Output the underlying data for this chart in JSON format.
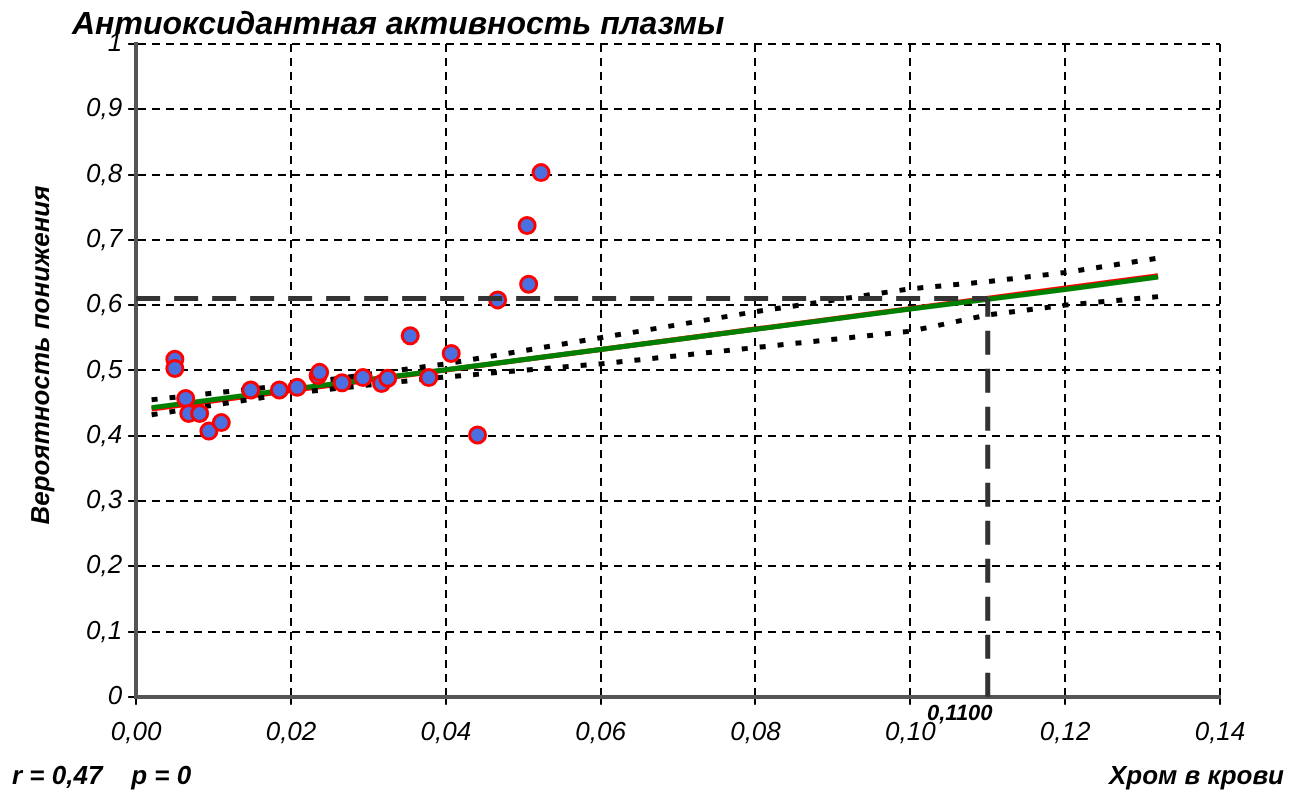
{
  "chart_data": {
    "type": "scatter",
    "title": "Антиоксидантная активность плазмы",
    "xlabel": "Хром в крови",
    "ylabel": "Вероятность понижения",
    "xlim": [
      0,
      0.14
    ],
    "xticks": [
      {
        "value": 0,
        "label": "0,00"
      },
      {
        "value": 0.02,
        "label": "0,02"
      },
      {
        "value": 0.04,
        "label": "0,04"
      },
      {
        "value": 0.06,
        "label": "0,06"
      },
      {
        "value": 0.08,
        "label": "0,08"
      },
      {
        "value": 0.1,
        "label": "0,10"
      },
      {
        "value": 0.12,
        "label": "0,12"
      },
      {
        "value": 0.14,
        "label": "0,14"
      }
    ],
    "ylim": [
      0,
      1
    ],
    "yticks": [
      0,
      {
        "value": 0.1,
        "label": "0,1"
      },
      {
        "value": 0.2,
        "label": "0,2"
      },
      {
        "value": 0.3,
        "label": "0,3"
      },
      {
        "value": 0.4,
        "label": "0,4"
      },
      {
        "value": 0.5,
        "label": "0,5"
      },
      {
        "value": 0.6,
        "label": "0,6"
      },
      {
        "value": 0.7,
        "label": "0,7"
      },
      {
        "value": 0.8,
        "label": "0,8"
      },
      {
        "value": 0.9,
        "label": "0,9"
      },
      1
    ],
    "grid": true,
    "legend": false,
    "series": [
      {
        "type": "line",
        "color": "#ff0000",
        "x": [
          0.002,
          0.132
        ],
        "values": [
          0.441,
          0.645
        ]
      },
      {
        "type": "line",
        "color": "#008000",
        "x": [
          0.002,
          0.02,
          0.04,
          0.06,
          0.08,
          0.1,
          0.11,
          0.12,
          0.132
        ],
        "values": [
          0.443,
          0.471,
          0.501,
          0.532,
          0.563,
          0.594,
          0.609,
          0.624,
          0.643
        ]
      },
      {
        "type": "line",
        "color": "#000000",
        "line_style": "dotted",
        "x": [
          0.002,
          0.02,
          0.04,
          0.06,
          0.08,
          0.1,
          0.11,
          0.12,
          0.132
        ],
        "values": [
          0.432,
          0.465,
          0.49,
          0.51,
          0.535,
          0.56,
          0.585,
          0.6,
          0.613
        ]
      },
      {
        "type": "line",
        "color": "#000000",
        "line_style": "dotted",
        "x": [
          0.002,
          0.02,
          0.04,
          0.06,
          0.08,
          0.1,
          0.11,
          0.12,
          0.132
        ],
        "values": [
          0.455,
          0.478,
          0.51,
          0.55,
          0.59,
          0.625,
          0.636,
          0.65,
          0.672
        ]
      },
      {
        "marker": "circle",
        "color": "#4a6fe0",
        "x": [
          0.005,
          0.005,
          0.0064,
          0.0068,
          0.0082,
          0.0094,
          0.011,
          0.0148,
          0.0185,
          0.0208,
          0.0235,
          0.0237,
          0.0266,
          0.0293,
          0.0317,
          0.0325,
          0.0354,
          0.0378,
          0.0407,
          0.0441,
          0.0467,
          0.0505,
          0.0507,
          0.0523
        ],
        "values": [
          0.517,
          0.503,
          0.457,
          0.434,
          0.434,
          0.407,
          0.42,
          0.47,
          0.47,
          0.474,
          0.492,
          0.497,
          0.481,
          0.489,
          0.48,
          0.488,
          0.553,
          0.489,
          0.526,
          0.401,
          0.608,
          0.722,
          0.632,
          0.803
        ]
      }
    ],
    "ref_lines": [
      {
        "axis": "y",
        "value": 0.61,
        "line_style": "dashed",
        "color": "#333333"
      },
      {
        "axis": "x",
        "value": 0.11,
        "label": "0,1100",
        "line_style": "dashed",
        "color": "#333333"
      }
    ],
    "annotations": [
      "r = 0,47    p = 0"
    ]
  }
}
